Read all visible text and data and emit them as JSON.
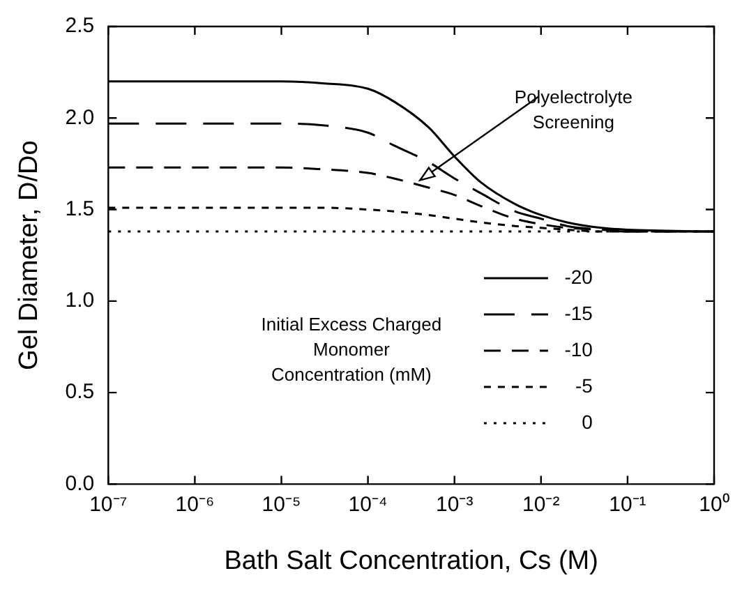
{
  "chart_data": {
    "type": "line",
    "xlabel": "Bath Salt Concentration, Cs (M)",
    "ylabel": "Gel Diameter, D/Do",
    "legend_title": "Initial Excess Charged Monomer Concentration (mM)",
    "legend": "bottom right",
    "log": "x",
    "grid": false,
    "marker": "none",
    "x": [
      1e-07,
      1e-06,
      1e-05,
      3e-05,
      0.0001,
      0.0002,
      0.0005,
      0.001,
      0.002,
      0.005,
      0.01,
      0.02,
      0.05,
      0.1,
      1
    ],
    "series": [
      {
        "name": "-20",
        "color": "#000000",
        "line_style": "solid",
        "values": [
          2.2,
          2.2,
          2.2,
          2.19,
          2.16,
          2.09,
          1.95,
          1.79,
          1.65,
          1.53,
          1.47,
          1.43,
          1.4,
          1.39,
          1.38
        ]
      },
      {
        "name": "-15",
        "color": "#000000",
        "line_style": "dashed",
        "values": [
          1.97,
          1.97,
          1.97,
          1.96,
          1.92,
          1.85,
          1.76,
          1.67,
          1.59,
          1.49,
          1.45,
          1.41,
          1.39,
          1.38,
          1.38
        ]
      },
      {
        "name": "-10",
        "color": "#000000",
        "line_style": "dashed",
        "values": [
          1.73,
          1.73,
          1.73,
          1.72,
          1.7,
          1.67,
          1.62,
          1.58,
          1.52,
          1.45,
          1.42,
          1.4,
          1.39,
          1.38,
          1.38
        ]
      },
      {
        "name": "-5",
        "color": "#000000",
        "line_style": "dashed",
        "values": [
          1.51,
          1.51,
          1.51,
          1.51,
          1.5,
          1.49,
          1.47,
          1.45,
          1.43,
          1.41,
          1.4,
          1.39,
          1.38,
          1.38,
          1.38
        ]
      },
      {
        "name": "0",
        "color": "#000000",
        "line_style": "dotted",
        "values": [
          1.38,
          1.38,
          1.38,
          1.38,
          1.38,
          1.38,
          1.38,
          1.38,
          1.38,
          1.38,
          1.38,
          1.38,
          1.38,
          1.38,
          1.38
        ]
      }
    ],
    "annotations": [
      {
        "text": "Polyelectrolyte Screening",
        "x": 0.0004,
        "y": 1.66
      }
    ],
    "xlim": [
      1e-07,
      1
    ],
    "xticks": [
      {
        "value": 1e-07,
        "label": "10⁻⁷"
      },
      {
        "value": 1e-06,
        "label": "10⁻⁶"
      },
      {
        "value": 1e-05,
        "label": "10⁻⁵"
      },
      {
        "value": 0.0001,
        "label": "10⁻⁴"
      },
      {
        "value": 0.001,
        "label": "10⁻³"
      },
      {
        "value": 0.01,
        "label": "10⁻²"
      },
      {
        "value": 0.1,
        "label": "10⁻¹"
      },
      {
        "value": 1,
        "label": "10⁰"
      }
    ],
    "ylim": [
      0,
      2.5
    ],
    "yticks": [
      {
        "value": 0,
        "label": "0.0"
      },
      {
        "value": 0.5,
        "label": "0.5"
      },
      {
        "value": 1,
        "label": "1.0"
      },
      {
        "value": 1.5,
        "label": "1.5"
      },
      {
        "value": 2,
        "label": "2.0"
      },
      {
        "value": 2.5,
        "label": "2.5"
      }
    ]
  }
}
